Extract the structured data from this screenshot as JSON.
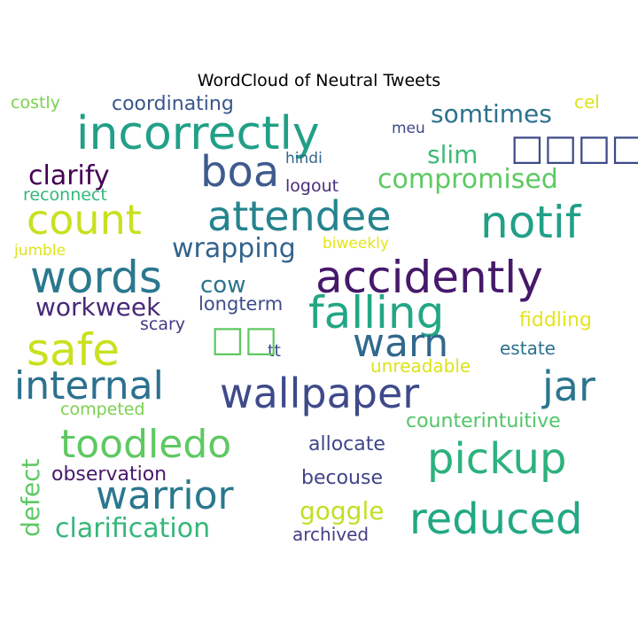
{
  "chart_data": {
    "type": "wordcloud",
    "title": "WordCloud of Neutral Tweets",
    "words": [
      {
        "text": "incorrectly",
        "color": "#21a087"
      },
      {
        "text": "boa",
        "color": "#3f5b8e"
      },
      {
        "text": "attendee",
        "color": "#25848e"
      },
      {
        "text": "notif",
        "color": "#21a087"
      },
      {
        "text": "count",
        "color": "#c8e020"
      },
      {
        "text": "words",
        "color": "#2a788e"
      },
      {
        "text": "accidently",
        "color": "#46196b"
      },
      {
        "text": "falling",
        "color": "#22a785"
      },
      {
        "text": "safe",
        "color": "#c9e11f"
      },
      {
        "text": "warn",
        "color": "#31688e"
      },
      {
        "text": "wallpaper",
        "color": "#3e4a89"
      },
      {
        "text": "jar",
        "color": "#2b758e"
      },
      {
        "text": "internal",
        "color": "#2c718e"
      },
      {
        "text": "toodledo",
        "color": "#5ec962"
      },
      {
        "text": "pickup",
        "color": "#2db27d"
      },
      {
        "text": "warrior",
        "color": "#2a788e"
      },
      {
        "text": "reduced",
        "color": "#22a884"
      },
      {
        "text": "clarification",
        "color": "#35b779"
      },
      {
        "text": "coordinating",
        "color": "#39568c"
      },
      {
        "text": "somtimes",
        "color": "#2c728e"
      },
      {
        "text": "slim",
        "color": "#3bbb75"
      },
      {
        "text": "clarify",
        "color": "#440154"
      },
      {
        "text": "compromised",
        "color": "#5ec962"
      },
      {
        "text": "wrapping",
        "color": "#33638d"
      },
      {
        "text": "cow",
        "color": "#2c738e"
      },
      {
        "text": "workweek",
        "color": "#482878"
      },
      {
        "text": "longterm",
        "color": "#3e4c8a"
      },
      {
        "text": "observation",
        "color": "#48186a"
      },
      {
        "text": "allocate",
        "color": "#3f4788"
      },
      {
        "text": "counterintuitive",
        "color": "#52c569"
      },
      {
        "text": "goggle",
        "color": "#c2df23"
      },
      {
        "text": "defect",
        "color": "#5ec962"
      },
      {
        "text": "becouse",
        "color": "#414487"
      },
      {
        "text": "archived",
        "color": "#433e85"
      },
      {
        "text": "fiddling",
        "color": "#e5e419"
      },
      {
        "text": "estate",
        "color": "#2c728e"
      },
      {
        "text": "unreadable",
        "color": "#dde318"
      },
      {
        "text": "competed",
        "color": "#7ad151"
      },
      {
        "text": "costly",
        "color": "#7ad151"
      },
      {
        "text": "meu",
        "color": "#3f4889"
      },
      {
        "text": "cel",
        "color": "#dde318"
      },
      {
        "text": "hindi",
        "color": "#31688e"
      },
      {
        "text": "logout",
        "color": "#472d7b"
      },
      {
        "text": "reconnect",
        "color": "#35b779"
      },
      {
        "text": "biweekly",
        "color": "#e5e419"
      },
      {
        "text": "jumble",
        "color": "#dde318"
      },
      {
        "text": "scary",
        "color": "#453781"
      },
      {
        "text": "tt",
        "color": "#3f4889"
      },
      {
        "text": "□□□□",
        "color": "#3e4a89"
      },
      {
        "text": "□□",
        "color": "#5ec962"
      }
    ]
  }
}
